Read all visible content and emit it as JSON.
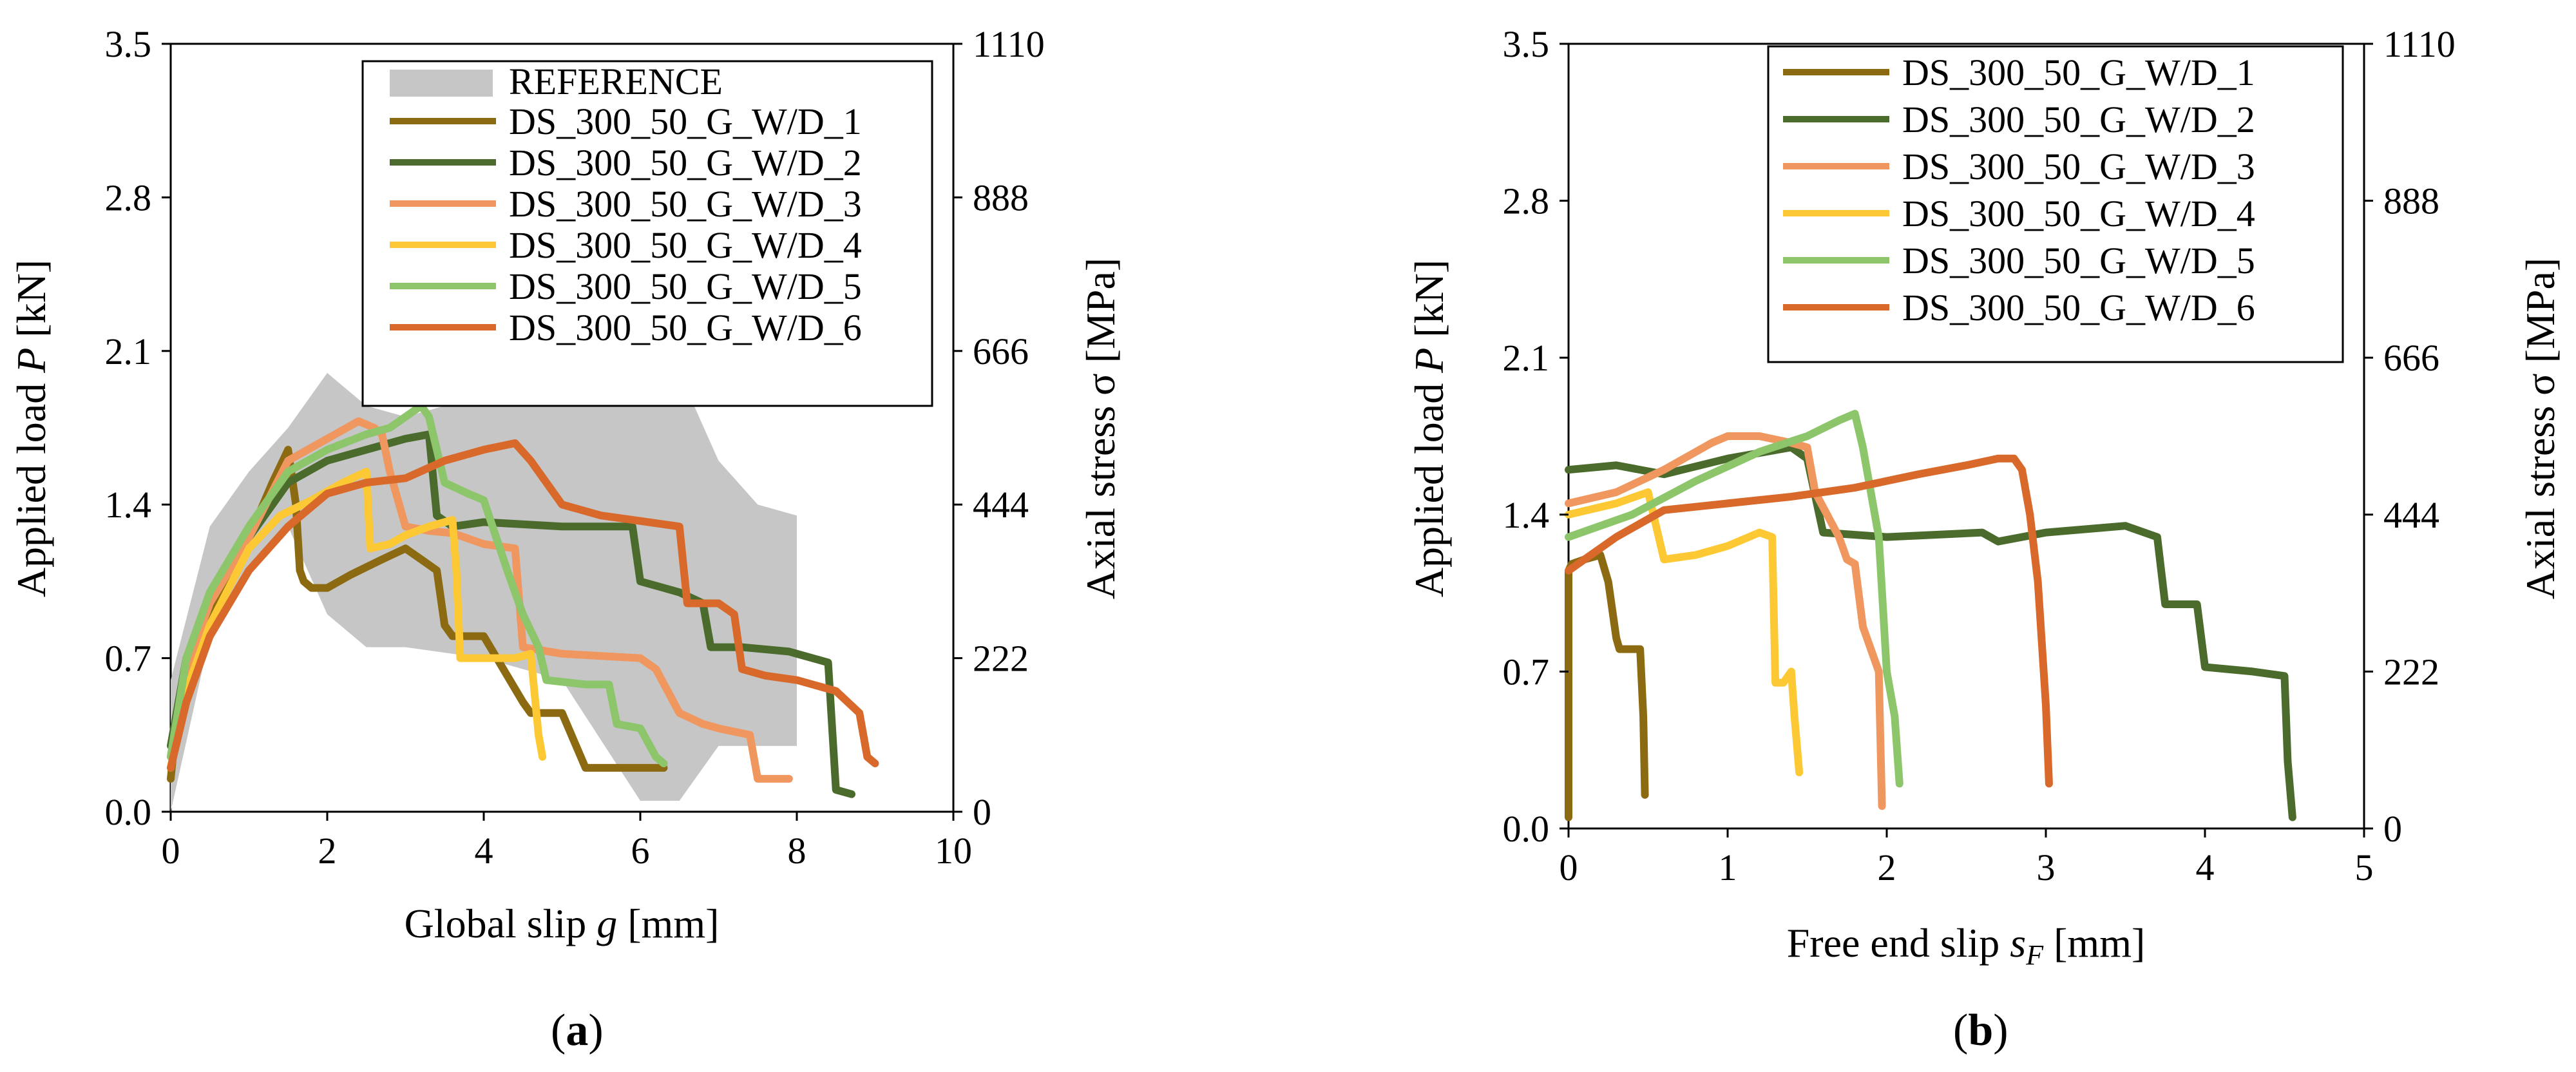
{
  "figure": {
    "panel_a_label": "a",
    "panel_b_label": "b"
  },
  "colors": {
    "reference": "#c6c6c6",
    "DS_300_50_G_W/D_1": "#8c6a12",
    "DS_300_50_G_W/D_2": "#4a6b2c",
    "DS_300_50_G_W/D_3": "#f0975f",
    "DS_300_50_G_W/D_4": "#fcc935",
    "DS_300_50_G_W/D_5": "#8cc56a",
    "DS_300_50_G_W/D_6": "#d8692a"
  },
  "chart_data": [
    {
      "type": "line",
      "panel": "a",
      "xlabel": "Global slip g [mm]",
      "ylabel": "Applied load P [kN]",
      "y2label": "Axial stress σ [MPa]",
      "xlim": [
        0,
        10
      ],
      "ylim": [
        0,
        3.5
      ],
      "xticks": [
        "0",
        "2",
        "4",
        "6",
        "8",
        "10"
      ],
      "yticks": [
        "0.0",
        "0.7",
        "1.4",
        "2.1",
        "2.8",
        "3.5"
      ],
      "y2ticks": [
        "0",
        "222",
        "444",
        "666",
        "888",
        "1110"
      ],
      "legend_position": "top-right",
      "grid": false,
      "reference_band": {
        "name": "REFERENCE",
        "x": [
          0,
          0.5,
          1.0,
          1.5,
          2.0,
          2.5,
          3.0,
          4.0,
          5.0,
          6.0,
          6.5,
          7.0,
          7.5,
          8.0
        ],
        "upper": [
          0.6,
          1.3,
          1.55,
          1.75,
          2.0,
          1.85,
          1.8,
          1.9,
          1.95,
          2.0,
          2.0,
          1.6,
          1.4,
          1.35
        ],
        "lower": [
          0.0,
          0.8,
          1.1,
          1.3,
          0.9,
          0.75,
          0.75,
          0.7,
          0.6,
          0.05,
          0.05,
          0.3,
          0.3,
          0.3
        ]
      },
      "series": [
        {
          "name": "DS_300_50_G_W/D_1",
          "x": [
            0,
            0.1,
            0.3,
            0.6,
            1.0,
            1.3,
            1.5,
            1.6,
            1.65,
            1.7,
            1.8,
            2.0,
            2.3,
            2.7,
            3.0,
            3.2,
            3.4,
            3.5,
            3.6,
            3.8,
            4.0,
            4.5,
            4.6,
            5.0,
            5.3,
            5.6,
            5.9,
            6.2,
            6.3
          ],
          "y": [
            0.15,
            0.5,
            0.75,
            0.95,
            1.25,
            1.5,
            1.65,
            1.4,
            1.1,
            1.05,
            1.02,
            1.02,
            1.08,
            1.15,
            1.2,
            1.15,
            1.1,
            0.85,
            0.8,
            0.8,
            0.8,
            0.5,
            0.45,
            0.45,
            0.2,
            0.2,
            0.2,
            0.2,
            0.2
          ]
        },
        {
          "name": "DS_300_50_G_W/D_2",
          "x": [
            0,
            0.2,
            0.5,
            1.0,
            1.5,
            2.0,
            2.5,
            3.0,
            3.3,
            3.4,
            3.6,
            4.0,
            5.0,
            5.9,
            6.0,
            6.5,
            6.8,
            6.9,
            7.3,
            7.9,
            8.0,
            8.4,
            8.5,
            8.7
          ],
          "y": [
            0.3,
            0.7,
            0.95,
            1.25,
            1.5,
            1.6,
            1.65,
            1.7,
            1.72,
            1.35,
            1.3,
            1.32,
            1.3,
            1.3,
            1.05,
            1.0,
            0.95,
            0.75,
            0.75,
            0.73,
            0.72,
            0.68,
            0.1,
            0.08
          ]
        },
        {
          "name": "DS_300_50_G_W/D_3",
          "x": [
            0,
            0.2,
            0.5,
            1.0,
            1.5,
            2.0,
            2.4,
            2.6,
            2.7,
            2.8,
            3.0,
            3.3,
            3.6,
            4.0,
            4.4,
            4.5,
            5.0,
            6.0,
            6.2,
            6.5,
            6.8,
            7.0,
            7.4,
            7.5,
            7.9
          ],
          "y": [
            0.25,
            0.65,
            0.95,
            1.25,
            1.6,
            1.7,
            1.78,
            1.75,
            1.72,
            1.55,
            1.3,
            1.28,
            1.27,
            1.22,
            1.2,
            0.75,
            0.72,
            0.7,
            0.65,
            0.45,
            0.4,
            0.38,
            0.35,
            0.15,
            0.15
          ]
        },
        {
          "name": "DS_300_50_G_W/D_4",
          "x": [
            0,
            0.2,
            0.5,
            1.0,
            1.4,
            1.8,
            2.2,
            2.5,
            2.55,
            2.8,
            3.0,
            3.3,
            3.6,
            3.65,
            3.7,
            4.0,
            4.4,
            4.6,
            4.7,
            4.75
          ],
          "y": [
            0.2,
            0.55,
            0.85,
            1.2,
            1.35,
            1.42,
            1.5,
            1.55,
            1.2,
            1.22,
            1.26,
            1.3,
            1.33,
            1.1,
            0.7,
            0.7,
            0.7,
            0.72,
            0.35,
            0.25
          ]
        },
        {
          "name": "DS_300_50_G_W/D_5",
          "x": [
            0,
            0.2,
            0.5,
            1.0,
            1.5,
            2.0,
            2.5,
            2.8,
            3.0,
            3.2,
            3.3,
            3.5,
            3.8,
            4.0,
            4.3,
            4.5,
            4.7,
            4.8,
            5.3,
            5.6,
            5.7,
            6.0,
            6.2,
            6.3
          ],
          "y": [
            0.25,
            0.7,
            1.0,
            1.3,
            1.55,
            1.65,
            1.72,
            1.75,
            1.8,
            1.85,
            1.8,
            1.5,
            1.45,
            1.42,
            1.1,
            0.9,
            0.75,
            0.6,
            0.58,
            0.58,
            0.4,
            0.38,
            0.25,
            0.22
          ]
        },
        {
          "name": "DS_300_50_G_W/D_6",
          "x": [
            0,
            0.2,
            0.5,
            1.0,
            1.5,
            2.0,
            2.5,
            3.0,
            3.5,
            4.0,
            4.4,
            4.6,
            4.8,
            5.0,
            5.5,
            6.5,
            6.6,
            7.0,
            7.2,
            7.3,
            7.6,
            8.0,
            8.5,
            8.8,
            8.9,
            9.0
          ],
          "y": [
            0.2,
            0.5,
            0.8,
            1.1,
            1.3,
            1.45,
            1.5,
            1.52,
            1.6,
            1.65,
            1.68,
            1.6,
            1.5,
            1.4,
            1.35,
            1.3,
            0.95,
            0.95,
            0.9,
            0.65,
            0.62,
            0.6,
            0.55,
            0.45,
            0.25,
            0.22
          ]
        }
      ]
    },
    {
      "type": "line",
      "panel": "b",
      "xlabel": "Free end slip s",
      "xlabel_sub": "F",
      "xlabel_unit": "[mm]",
      "ylabel": "Applied load P [kN]",
      "y2label": "Axial stress σ [MPa]",
      "xlim": [
        0,
        5
      ],
      "ylim": [
        0,
        3.5
      ],
      "xticks": [
        "0",
        "1",
        "2",
        "3",
        "4",
        "5"
      ],
      "yticks": [
        "0.0",
        "0.7",
        "1.4",
        "2.1",
        "2.8",
        "3.5"
      ],
      "y2ticks": [
        "0",
        "222",
        "444",
        "666",
        "888",
        "1110"
      ],
      "legend_position": "top-right",
      "grid": false,
      "series": [
        {
          "name": "DS_300_50_G_W/D_1",
          "x": [
            0.0,
            0.0,
            0.02,
            0.1,
            0.2,
            0.25,
            0.3,
            0.32,
            0.45,
            0.47,
            0.48
          ],
          "y": [
            0.05,
            1.15,
            1.18,
            1.2,
            1.22,
            1.1,
            0.85,
            0.8,
            0.8,
            0.5,
            0.15
          ]
        },
        {
          "name": "DS_300_50_G_W/D_2",
          "x": [
            0.0,
            0.3,
            0.6,
            1.0,
            1.4,
            1.5,
            1.6,
            2.0,
            2.6,
            2.7,
            3.0,
            3.5,
            3.7,
            3.75,
            3.95,
            4.0,
            4.3,
            4.5,
            4.52,
            4.55
          ],
          "y": [
            1.6,
            1.62,
            1.58,
            1.65,
            1.7,
            1.65,
            1.32,
            1.3,
            1.32,
            1.28,
            1.32,
            1.35,
            1.3,
            1.0,
            1.0,
            0.72,
            0.7,
            0.68,
            0.3,
            0.05
          ]
        },
        {
          "name": "DS_300_50_G_W/D_3",
          "x": [
            0.0,
            0.3,
            0.6,
            0.9,
            1.0,
            1.2,
            1.4,
            1.5,
            1.55,
            1.7,
            1.75,
            1.8,
            1.85,
            1.95,
            1.97
          ],
          "y": [
            1.45,
            1.5,
            1.6,
            1.72,
            1.75,
            1.75,
            1.72,
            1.7,
            1.5,
            1.3,
            1.2,
            1.18,
            0.9,
            0.7,
            0.1
          ]
        },
        {
          "name": "DS_300_50_G_W/D_4",
          "x": [
            0.0,
            0.3,
            0.5,
            0.6,
            0.8,
            1.0,
            1.2,
            1.28,
            1.3,
            1.35,
            1.4,
            1.42,
            1.45
          ],
          "y": [
            1.4,
            1.45,
            1.5,
            1.2,
            1.22,
            1.26,
            1.32,
            1.3,
            0.65,
            0.65,
            0.7,
            0.5,
            0.25
          ]
        },
        {
          "name": "DS_300_50_G_W/D_5",
          "x": [
            0.0,
            0.4,
            0.8,
            1.2,
            1.5,
            1.7,
            1.8,
            1.85,
            1.95,
            2.0,
            2.05,
            2.08
          ],
          "y": [
            1.3,
            1.4,
            1.55,
            1.68,
            1.75,
            1.82,
            1.85,
            1.7,
            1.3,
            0.7,
            0.5,
            0.2
          ]
        },
        {
          "name": "DS_300_50_G_W/D_6",
          "x": [
            0.0,
            0.1,
            0.3,
            0.6,
            1.0,
            1.4,
            1.8,
            2.2,
            2.5,
            2.7,
            2.8,
            2.85,
            2.9,
            2.95,
            3.0,
            3.02
          ],
          "y": [
            1.15,
            1.2,
            1.3,
            1.42,
            1.45,
            1.48,
            1.52,
            1.58,
            1.62,
            1.65,
            1.65,
            1.6,
            1.4,
            1.1,
            0.55,
            0.2
          ]
        }
      ]
    }
  ]
}
